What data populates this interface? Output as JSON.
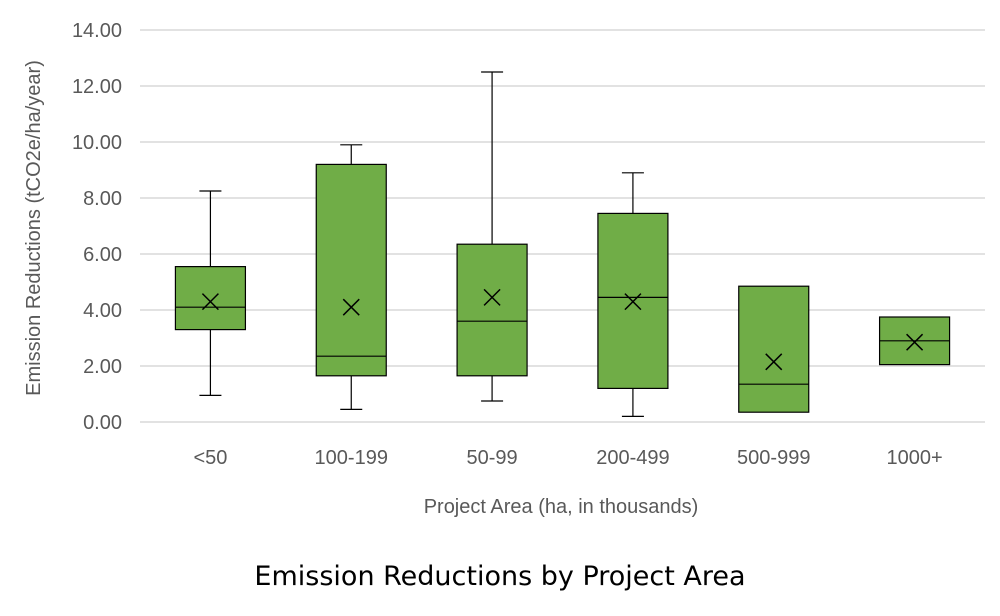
{
  "chart_data": {
    "type": "box",
    "title": "Emission Reductions by Project Area",
    "xlabel": "Project Area (ha, in thousands)",
    "ylabel": "Emission Reductions (tCO2e/ha/year)",
    "ylim": [
      0,
      14
    ],
    "yticks": [
      "0.00",
      "2.00",
      "4.00",
      "6.00",
      "8.00",
      "10.00",
      "12.00",
      "14.00"
    ],
    "grid": true,
    "categories": [
      "<50",
      "100-199",
      "50-99",
      "200-499",
      "500-999",
      "1000+"
    ],
    "boxes": [
      {
        "category": "<50",
        "min": 0.95,
        "q1": 3.3,
        "median": 4.1,
        "q3": 5.55,
        "max": 8.25,
        "mean": 4.3
      },
      {
        "category": "100-199",
        "min": 0.45,
        "q1": 1.65,
        "median": 2.35,
        "q3": 9.2,
        "max": 9.9,
        "mean": 4.1
      },
      {
        "category": "50-99",
        "min": 0.75,
        "q1": 1.65,
        "median": 3.6,
        "q3": 6.35,
        "max": 12.5,
        "mean": 4.45
      },
      {
        "category": "200-499",
        "min": 0.2,
        "q1": 1.2,
        "median": 4.45,
        "q3": 7.45,
        "max": 8.9,
        "mean": 4.3
      },
      {
        "category": "500-999",
        "min": 0.35,
        "q1": 0.35,
        "median": 1.35,
        "q3": 4.85,
        "max": 4.85,
        "mean": 2.15
      },
      {
        "category": "1000+",
        "min": 2.05,
        "q1": 2.05,
        "median": 2.9,
        "q3": 3.75,
        "max": 3.75,
        "mean": 2.85
      }
    ],
    "colors": {
      "box_fill": "#70ad47",
      "box_stroke": "#000000",
      "gridline": "#d9d9d9",
      "text": "#595959"
    }
  }
}
